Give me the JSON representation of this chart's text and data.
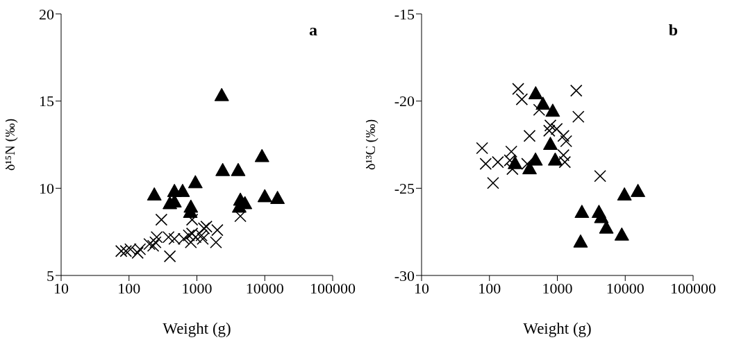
{
  "chart_data": [
    {
      "type": "scatter",
      "xlabel": "Weight (g)",
      "ylabel": "δ¹⁵N (‰)",
      "annotations": [
        "a"
      ],
      "log": "x",
      "xlim": [
        10,
        100000
      ],
      "xticks": [
        10,
        100,
        1000,
        10000,
        100000
      ],
      "ylim": [
        5,
        20
      ],
      "yticks": [
        5,
        10,
        15,
        20
      ],
      "grid": false,
      "series": [
        {
          "color": "#000000",
          "marker": "triangle",
          "x": [
            236,
            467,
            616,
            400,
            467,
            950,
            815,
            800,
            2320,
            2400,
            4060,
            9100,
            4370,
            5100,
            4200,
            10000,
            15400
          ],
          "values": [
            9.6,
            9.8,
            9.8,
            9.1,
            9.2,
            10.3,
            8.9,
            8.6,
            15.3,
            11,
            11,
            11.8,
            9.3,
            9.1,
            8.9,
            9.5,
            9.4
          ]
        },
        {
          "color": "#000000",
          "marker": "cross",
          "x": [
            77,
            90,
            105,
            145,
            134,
            200,
            227,
            245,
            256,
            300,
            400,
            382,
            467,
            640,
            760,
            815,
            850,
            850,
            955,
            1170,
            1270,
            1380,
            1220,
            2000,
            1910,
            4370
          ],
          "values": [
            6.4,
            6.4,
            6.5,
            6.5,
            6.3,
            6.8,
            6.7,
            6.9,
            7.2,
            8.2,
            6.1,
            7.2,
            7.1,
            7.1,
            7.3,
            6.9,
            7.4,
            8.2,
            7.2,
            7.3,
            7.7,
            7.8,
            7.1,
            7.6,
            6.9,
            8.4
          ]
        }
      ]
    },
    {
      "type": "scatter",
      "xlabel": "Weight (g)",
      "ylabel": "δ¹³C (‰)",
      "annotations": [
        "b"
      ],
      "log": "x",
      "xlim": [
        10,
        100000
      ],
      "xticks": [
        10,
        100,
        1000,
        10000,
        100000
      ],
      "ylim": [
        -30,
        -15
      ],
      "yticks": [
        -30,
        -25,
        -20,
        -15
      ],
      "grid": false,
      "series": [
        {
          "color": "#000000",
          "marker": "triangle",
          "x": [
            238,
            390,
            477,
            790,
            930,
            855,
            614,
            480,
            2300,
            2200,
            4100,
            4450,
            5270,
            8900,
            9740,
            15400
          ],
          "values": [
            -23.6,
            -23.9,
            -23.4,
            -22.5,
            -23.4,
            -20.6,
            -20.2,
            -19.6,
            -26.4,
            -28.1,
            -26.4,
            -26.7,
            -27.3,
            -27.7,
            -25.4,
            -25.2
          ]
        },
        {
          "color": "#000000",
          "marker": "cross",
          "x": [
            78,
            88,
            113,
            133,
            210,
            200,
            218,
            390,
            360,
            540,
            790,
            760,
            980,
            1230,
            1350,
            1230,
            1290,
            2040,
            4270,
            265,
            300,
            1900
          ],
          "values": [
            -22.7,
            -23.6,
            -24.7,
            -23.5,
            -22.9,
            -23.4,
            -23.9,
            -22,
            -23.6,
            -20.5,
            -21.4,
            -21.7,
            -21.6,
            -22,
            -22.3,
            -23.1,
            -23.5,
            -20.9,
            -24.3,
            -19.3,
            -19.9,
            -19.4
          ]
        }
      ]
    }
  ]
}
